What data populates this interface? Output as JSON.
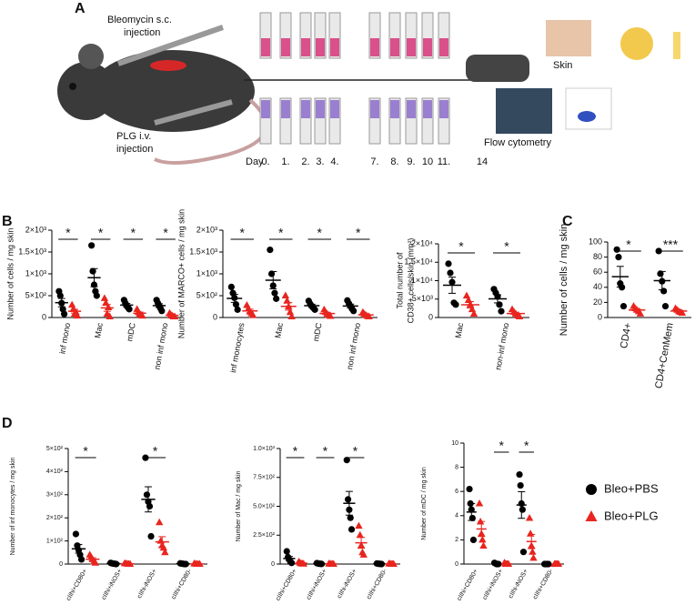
{
  "panels": [
    "A",
    "B",
    "C",
    "D"
  ],
  "schematic": {
    "bleo_label": [
      "Bleomycin s.c.",
      "injection"
    ],
    "plg_label": [
      "PLG  i.v.",
      "injection"
    ],
    "day_label": "Day",
    "days": [
      "0.",
      "1.",
      "2.",
      "3.",
      "4.",
      "7.",
      "8.",
      "9.",
      "10",
      "11.",
      "14"
    ],
    "skin": "Skin",
    "flow": "Flow cytometry"
  },
  "groups": [
    {
      "name": "Bleo+PBS",
      "color": "#000000",
      "marker": "circle"
    },
    {
      "name": "Bleo+PLG",
      "color": "#e8251f",
      "marker": "triangle"
    }
  ],
  "legend_position": "bottom-right",
  "chart_data": [
    {
      "type": "dot",
      "ylabel": [
        "Number of cells / mg skin"
      ],
      "categories": [
        "inf mono",
        "Mac",
        "mDC",
        "non inf mono"
      ],
      "series": [
        {
          "values": [
            [
              600,
              500,
              330,
              190,
              80
            ],
            [
              1650,
              1060,
              750,
              600,
              500
            ],
            [
              400,
              330,
              270,
              230,
              190
            ],
            [
              400,
              330,
              270,
              210,
              150
            ]
          ]
        },
        {
          "values": [
            [
              290,
              190,
              80,
              120,
              40
            ],
            [
              440,
              330,
              80,
              230,
              20
            ],
            [
              190,
              120,
              80,
              60,
              40
            ],
            [
              100,
              60,
              40,
              20,
              20
            ]
          ]
        }
      ],
      "ylim": [
        0,
        2000
      ],
      "yticks": [
        0,
        {
          "value": 500,
          "label": "5×10²"
        },
        {
          "value": 1000,
          "label": "1×10³"
        },
        {
          "value": 1500,
          "label": "1.5×10³"
        },
        {
          "value": 2000,
          "label": "2×10³"
        }
      ],
      "stars": [
        {
          "category": 0,
          "label": "*"
        },
        {
          "category": 1,
          "label": "*"
        },
        {
          "category": 2,
          "label": "*"
        },
        {
          "category": 3,
          "label": "*"
        }
      ]
    },
    {
      "type": "dot",
      "ylabel": [
        "Number of MARCO+ cells / mg skin"
      ],
      "categories": [
        "inf monocytes",
        "Mac",
        "mDC",
        "non inf mono"
      ],
      "series": [
        {
          "values": [
            [
              700,
              560,
              450,
              300,
              180
            ],
            [
              1550,
              1000,
              730,
              560,
              430
            ],
            [
              380,
              310,
              260,
              220,
              180
            ],
            [
              390,
              320,
              260,
              200,
              150
            ]
          ]
        },
        {
          "values": [
            [
              280,
              200,
              130,
              90,
              50
            ],
            [
              500,
              380,
              250,
              120,
              20
            ],
            [
              180,
              120,
              80,
              50,
              30
            ],
            [
              120,
              80,
              50,
              30,
              20
            ]
          ]
        }
      ],
      "ylim": [
        0,
        2000
      ],
      "yticks": [
        0,
        {
          "value": 500,
          "label": "5×10²"
        },
        {
          "value": 1000,
          "label": "1×10³"
        },
        {
          "value": 1500,
          "label": "1.5×10³"
        },
        {
          "value": 2000,
          "label": "2×10³"
        }
      ],
      "stars": [
        {
          "category": 0,
          "label": "*"
        },
        {
          "category": 1,
          "label": "*"
        },
        {
          "category": 2,
          "label": "*"
        },
        {
          "category": 3,
          "label": "*"
        }
      ]
    },
    {
      "type": "dot",
      "ylabel": [
        "Total number of",
        "CD38+ cells/skin (mm²)"
      ],
      "categories": [
        "Mac",
        "non-inf mono"
      ],
      "series": [
        {
          "values": [
            [
              14600,
              12100,
              9600,
              4000,
              3500
            ],
            [
              7700,
              6700,
              5700,
              3500,
              1700
            ]
          ]
        },
        {
          "values": [
            [
              5900,
              4700,
              3500,
              2200,
              1000
            ],
            [
              2200,
              1500,
              1000,
              500,
              250
            ]
          ]
        }
      ],
      "ylim": [
        0,
        20000
      ],
      "yticks": [
        0,
        {
          "value": 5000,
          "label": "5×10³"
        },
        {
          "value": 10000,
          "label": "1×10⁴"
        },
        {
          "value": 15000,
          "label": "1.5×10⁴"
        },
        {
          "value": 20000,
          "label": "2×10⁴"
        }
      ],
      "stars": [
        {
          "category": 0,
          "label": "*"
        },
        {
          "category": 1,
          "label": "*"
        }
      ]
    },
    {
      "type": "dot",
      "ylabel": [
        "Number of cells / mg skin"
      ],
      "categories": [
        "CD4+",
        "CD4+CenMem"
      ],
      "series": [
        {
          "values": [
            [
              90,
              80,
              45,
              40,
              15
            ],
            [
              88,
              58,
              48,
              35,
              15
            ]
          ]
        },
        {
          "values": [
            [
              15,
              12,
              10,
              8,
              5
            ],
            [
              12,
              10,
              8,
              7,
              6
            ]
          ]
        }
      ],
      "ylim": [
        0,
        100
      ],
      "yticks": [
        0,
        20,
        40,
        60,
        80,
        100
      ],
      "stars": [
        {
          "category": 0,
          "label": "*"
        },
        {
          "category": 1,
          "label": "***"
        }
      ]
    },
    {
      "type": "dot",
      "ylabel": [
        "Number of inf monocytes / mg skin"
      ],
      "categories": [
        "cIIhi+CD80+",
        "cIIhi+iNOS+",
        "cIIhi-iNOS+",
        "cIIhi+CD80-"
      ],
      "series": [
        {
          "values": [
            [
              130,
              80,
              60,
              40,
              20
            ],
            [
              5,
              3,
              2,
              1,
              0
            ],
            [
              460,
              300,
              270,
              250,
              120
            ],
            [
              3,
              2,
              1,
              0,
              0
            ]
          ]
        },
        {
          "values": [
            [
              40,
              30,
              20,
              10,
              5
            ],
            [
              3,
              2,
              1,
              0,
              0
            ],
            [
              180,
              100,
              80,
              70,
              50
            ],
            [
              2,
              1,
              0,
              0,
              0
            ]
          ]
        }
      ],
      "ylim": [
        0,
        500
      ],
      "yticks": [
        0,
        {
          "value": 100,
          "label": "1×10²"
        },
        {
          "value": 200,
          "label": "2×10²"
        },
        {
          "value": 300,
          "label": "3×10²"
        },
        {
          "value": 400,
          "label": "4×10²"
        },
        {
          "value": 500,
          "label": "5×10²"
        }
      ],
      "stars": [
        {
          "category": 0,
          "label": "*"
        },
        {
          "category": 2,
          "label": "*"
        }
      ]
    },
    {
      "type": "dot",
      "ylabel": [
        "Number of Mac / mg skin"
      ],
      "categories": [
        "cIIhi+CD80+",
        "cIIhi+iNOS+",
        "cIIhi-iNOS+",
        "cIIhi+CD80-"
      ],
      "series": [
        {
          "values": [
            [
              110,
              60,
              40,
              20,
              10
            ],
            [
              8,
              5,
              3,
              2,
              1
            ],
            [
              900,
              560,
              470,
              400,
              300
            ],
            [
              5,
              3,
              2,
              1,
              0
            ]
          ]
        },
        {
          "values": [
            [
              20,
              10,
              5,
              3,
              2
            ],
            [
              3,
              2,
              1,
              0,
              0
            ],
            [
              330,
              250,
              160,
              100,
              80
            ],
            [
              3,
              2,
              1,
              0,
              0
            ]
          ]
        }
      ],
      "ylim": [
        0,
        1000
      ],
      "yticks": [
        0,
        {
          "value": 250,
          "label": "2.5×10²"
        },
        {
          "value": 500,
          "label": "5.0×10²"
        },
        {
          "value": 750,
          "label": "7.5×10²"
        },
        {
          "value": 1000,
          "label": "1.0×10³"
        }
      ],
      "stars": [
        {
          "category": 0,
          "label": "*"
        },
        {
          "category": 1,
          "label": "*"
        },
        {
          "category": 2,
          "label": "*"
        }
      ]
    },
    {
      "type": "dot",
      "ylabel": [
        "Number of mDC / mg skin"
      ],
      "categories": [
        "cIIhi+CD80+",
        "cIIhi+iNOS+",
        "cIIhi-iNOS+",
        "cIIhi+CD80-"
      ],
      "series": [
        {
          "values": [
            [
              6.2,
              5.0,
              4.5,
              3.8,
              2.0
            ],
            [
              0.1,
              0.05,
              0,
              0,
              0
            ],
            [
              7.4,
              6.5,
              5.0,
              4.5,
              1.0
            ],
            [
              0,
              0,
              0,
              0,
              0
            ]
          ]
        },
        {
          "values": [
            [
              5.0,
              3.5,
              2.5,
              2.0,
              1.5
            ],
            [
              0.1,
              0,
              0,
              0,
              0
            ],
            [
              3.8,
              2.5,
              1.5,
              1.0,
              0.5
            ],
            [
              0,
              0,
              0,
              0,
              0
            ]
          ]
        }
      ],
      "ylim": [
        0,
        10
      ],
      "yticks": [
        0,
        2,
        4,
        6,
        8,
        10
      ],
      "stars": [
        {
          "category": 1,
          "label": "*"
        },
        {
          "category": 2,
          "label": "*"
        }
      ]
    }
  ]
}
